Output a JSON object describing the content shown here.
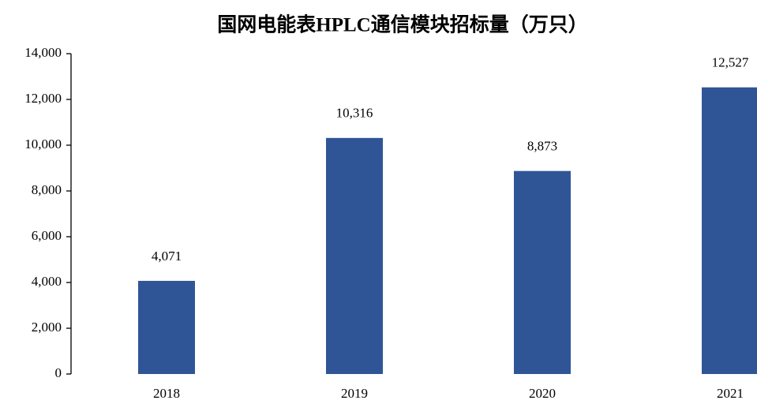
{
  "chart_data": {
    "type": "bar",
    "title": "国网电能表HPLC通信模块招标量（万只）",
    "categories": [
      "2018",
      "2019",
      "2020",
      "2021"
    ],
    "values": [
      4071,
      10316,
      8873,
      12527
    ],
    "value_labels": [
      "4,071",
      "10,316",
      "8,873",
      "12,527"
    ],
    "color": "#2f5597",
    "ylim": [
      0,
      14000
    ],
    "yticks": [
      0,
      {
        "value": 2000,
        "label": "2,000"
      },
      {
        "value": 4000,
        "label": "4,000"
      },
      {
        "value": 6000,
        "label": "6,000"
      },
      {
        "value": 8000,
        "label": "8,000"
      },
      {
        "value": 10000,
        "label": "10,000"
      },
      {
        "value": 12000,
        "label": "12,000"
      },
      {
        "value": 14000,
        "label": "14,000"
      }
    ],
    "grid": false
  }
}
